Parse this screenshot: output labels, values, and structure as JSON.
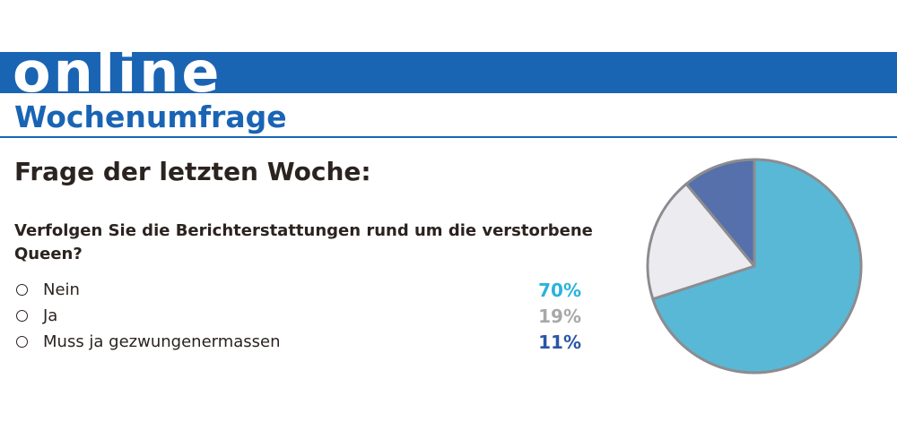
{
  "header": {
    "banner_text": "online",
    "subtitle": "Wochenumfrage"
  },
  "poll": {
    "heading": "Frage der letzten Woche:",
    "question": "Verfolgen Sie die Berichterstattungen rund um die verstorbene Queen?",
    "options": [
      {
        "label": "Nein",
        "percent_label": "70%"
      },
      {
        "label": "Ja",
        "percent_label": "19%"
      },
      {
        "label": "Muss ja gezwungenermassen",
        "percent_label": "11%"
      }
    ]
  },
  "colors": {
    "brand_blue": "#1a64b4",
    "nein": "#58b8d6",
    "ja": "#ececf0",
    "muss": "#5570aa",
    "pie_outline": "#8c8c90",
    "pct_nein": "#2ab3dc",
    "pct_ja": "#a8a8ab",
    "pct_muss": "#2b56a6"
  },
  "chart_data": {
    "type": "pie",
    "categories": [
      "Nein",
      "Ja",
      "Muss ja gezwungenermassen"
    ],
    "values": [
      70,
      19,
      11
    ],
    "unit": "%",
    "title": "Frage der letzten Woche:",
    "start": "12 o'clock",
    "direction": "clockwise"
  }
}
